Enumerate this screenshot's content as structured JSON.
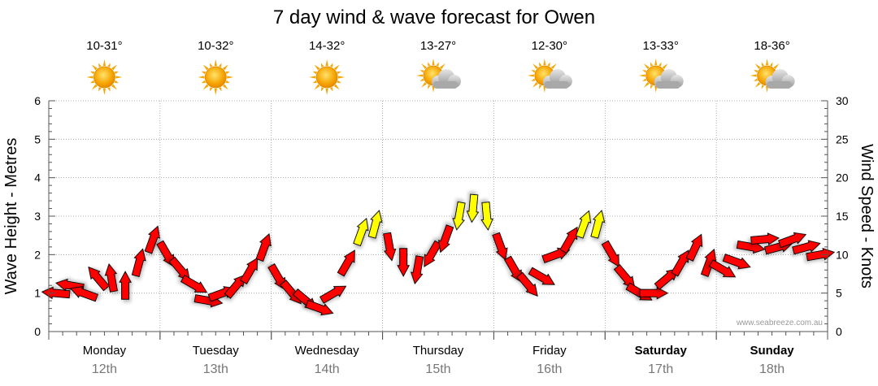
{
  "chart_data": {
    "type": "wind-wave-forecast",
    "title": "7 day wind & wave forecast for Owen",
    "ylabel_left": "Wave Height - Metres",
    "ylabel_right": "Wind Speed - Knots",
    "ylim_left": [
      0,
      6
    ],
    "ylim_right": [
      0,
      30
    ],
    "yticks_left": [
      "0",
      "1",
      "2",
      "3",
      "4",
      "5",
      "6"
    ],
    "yticks_right": [
      "0",
      "5",
      "10",
      "15",
      "20",
      "25",
      "30"
    ],
    "grid": true,
    "colors": {
      "strong": "#ff0000",
      "moderate": "#ffff00",
      "outline": "#000000",
      "grid": "#999999"
    },
    "days": [
      {
        "name": "Monday",
        "date": "12th",
        "temp": "10-31°",
        "icon": "sun-icon",
        "bold": false
      },
      {
        "name": "Tuesday",
        "date": "13th",
        "temp": "10-32°",
        "icon": "sun-icon",
        "bold": false
      },
      {
        "name": "Wednesday",
        "date": "14th",
        "temp": "14-32°",
        "icon": "sun-icon",
        "bold": false
      },
      {
        "name": "Thursday",
        "date": "15th",
        "temp": "13-27°",
        "icon": "sun-cloud-icon",
        "bold": false
      },
      {
        "name": "Friday",
        "date": "16th",
        "temp": "12-30°",
        "icon": "sun-cloud-icon",
        "bold": false
      },
      {
        "name": "Saturday",
        "date": "17th",
        "temp": "13-33°",
        "icon": "sun-cloud-icon",
        "bold": true
      },
      {
        "name": "Sunday",
        "date": "18th",
        "temp": "18-36°",
        "icon": "sun-cloud-icon",
        "bold": true
      }
    ],
    "wind_points_per_day": 8,
    "wind_speed_knots": [
      5,
      6,
      5,
      7,
      7,
      6,
      9,
      12,
      10,
      8,
      6,
      4,
      5,
      6,
      8,
      11,
      7,
      5,
      4,
      3,
      5,
      9,
      13,
      14,
      11,
      9,
      8,
      10,
      12,
      15,
      16,
      15,
      11,
      8,
      6,
      7,
      10,
      12,
      14,
      14,
      10,
      7,
      5,
      5,
      7,
      9,
      11,
      9,
      8,
      9,
      11,
      12,
      11,
      12,
      11,
      10
    ],
    "wind_dir_deg": [
      95,
      100,
      110,
      140,
      170,
      180,
      195,
      200,
      330,
      320,
      300,
      280,
      250,
      220,
      210,
      200,
      330,
      320,
      310,
      290,
      240,
      210,
      200,
      195,
      350,
      0,
      10,
      30,
      20,
      10,
      5,
      355,
      340,
      330,
      320,
      300,
      250,
      210,
      200,
      195,
      330,
      320,
      300,
      270,
      230,
      210,
      205,
      200,
      300,
      290,
      280,
      265,
      255,
      250,
      255,
      260
    ],
    "credit": "www.seabreeze.com.au"
  }
}
